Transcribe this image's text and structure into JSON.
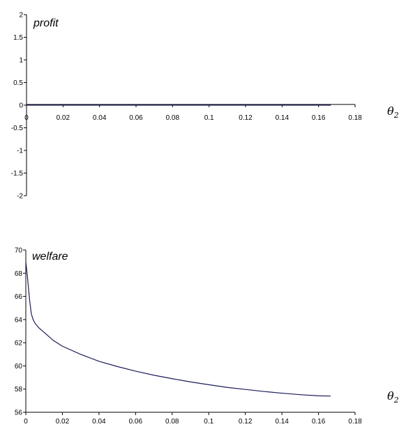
{
  "chart_data": [
    {
      "type": "line",
      "title": "profit",
      "xlabel": "θ",
      "xlabel_sub": "2",
      "xlim": [
        0,
        0.18
      ],
      "ylim": [
        -2,
        2
      ],
      "x_ticks": [
        "0",
        "0.02",
        "0.04",
        "0.06",
        "0.08",
        "0.1",
        "0.12",
        "0.14",
        "0.16",
        "0.18"
      ],
      "y_ticks": [
        "2",
        "1.5",
        "1",
        "0.5",
        "0",
        "-0.5",
        "-1",
        "-1.5",
        "-2"
      ],
      "series": [
        {
          "color": "#1b1b5a",
          "x": [
            0,
            0.04,
            0.08,
            0.12,
            0.1667
          ],
          "y": [
            0,
            0,
            0,
            0,
            0
          ]
        }
      ]
    },
    {
      "type": "line",
      "title": "welfare",
      "xlabel": "θ",
      "xlabel_sub": "2",
      "xlim": [
        0,
        0.18
      ],
      "ylim": [
        56,
        70
      ],
      "x_ticks": [
        "0",
        "0.02",
        "0.04",
        "0.06",
        "0.08",
        "0.1",
        "0.12",
        "0.14",
        "0.16",
        "0.18"
      ],
      "y_ticks": [
        "70",
        "68",
        "66",
        "64",
        "62",
        "60",
        "58",
        "56"
      ],
      "series": [
        {
          "color": "#1b1b5a",
          "x": [
            0,
            0.001,
            0.002,
            0.003,
            0.004,
            0.005,
            0.007,
            0.01,
            0.015,
            0.02,
            0.03,
            0.04,
            0.05,
            0.06,
            0.07,
            0.08,
            0.09,
            0.1,
            0.11,
            0.12,
            0.13,
            0.14,
            0.15,
            0.16,
            0.1667
          ],
          "y": [
            69.0,
            67.5,
            65.8,
            64.5,
            64.0,
            63.7,
            63.3,
            62.9,
            62.2,
            61.7,
            61.0,
            60.4,
            59.95,
            59.55,
            59.2,
            58.9,
            58.62,
            58.38,
            58.15,
            57.97,
            57.8,
            57.65,
            57.52,
            57.42,
            57.4
          ]
        }
      ]
    }
  ]
}
